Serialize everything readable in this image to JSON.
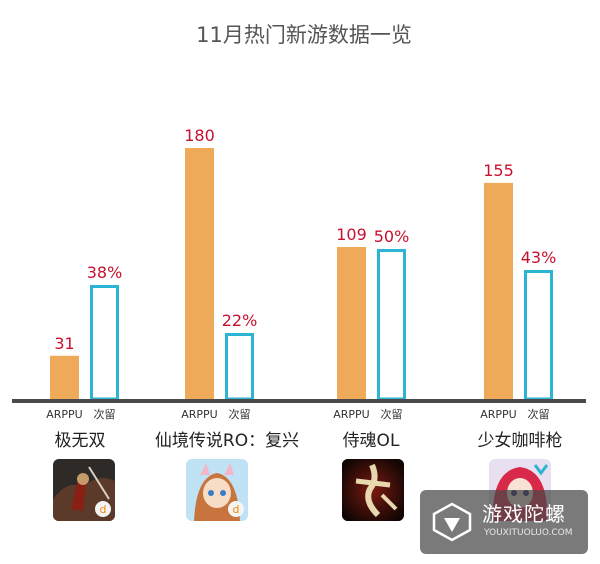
{
  "chart_data": {
    "type": "bar",
    "title": "11月热门新游数据一览",
    "categories": [
      "极无双",
      "仙境传说RO：复兴",
      "侍魂OL",
      "少女咖啡枪"
    ],
    "series": [
      {
        "name": "ARPPU",
        "values": [
          31,
          180,
          109,
          155
        ],
        "labels": [
          "31",
          "180",
          "109",
          "155"
        ],
        "color": "#eeaa58"
      },
      {
        "name": "次留",
        "values": [
          38,
          22,
          50,
          43
        ],
        "labels": [
          "38%",
          "22%",
          "50%",
          "43%"
        ],
        "color": "#2bb5d3"
      }
    ],
    "sub_labels": [
      "ARPPU",
      "次留"
    ],
    "grid": false
  },
  "watermark": {
    "cn": "游戏陀螺",
    "en": "YOUXITUOLUO.COM"
  },
  "colors": {
    "baseline": "#4a4a4a",
    "value_text": "#c8102e"
  },
  "icons": [
    "warrior-game-icon",
    "anime-girl-game-icon",
    "samurai-calligraphy-game-icon",
    "red-hair-girl-game-icon"
  ]
}
